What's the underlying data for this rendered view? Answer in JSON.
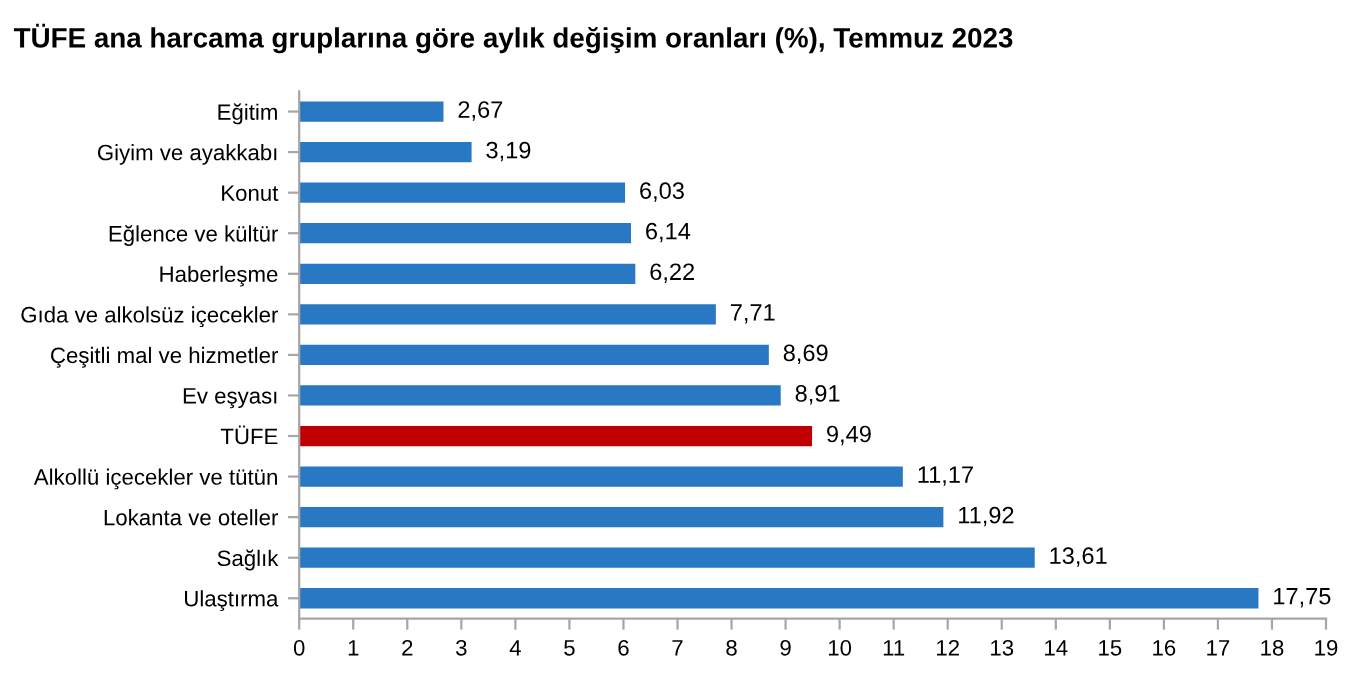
{
  "chart_data": {
    "type": "bar",
    "orientation": "horizontal",
    "title": "TÜFE ana harcama gruplarına göre aylık değişim oranları (%), Temmuz 2023",
    "categories": [
      "Eğitim",
      "Giyim ve ayakkabı",
      "Konut",
      "Eğlence ve kültür",
      "Haberleşme",
      "Gıda ve alkolsüz içecekler",
      "Çeşitli mal ve hizmetler",
      "Ev eşyası",
      "TÜFE",
      "Alkollü içecekler ve tütün",
      "Lokanta ve oteller",
      "Sağlık",
      "Ulaştırma"
    ],
    "values": [
      2.67,
      3.19,
      6.03,
      6.14,
      6.22,
      7.71,
      8.69,
      8.91,
      9.49,
      11.17,
      11.92,
      13.61,
      17.75
    ],
    "value_labels": [
      "2,67",
      "3,19",
      "6,03",
      "6,14",
      "6,22",
      "7,71",
      "8,69",
      "8,91",
      "9,49",
      "11,17",
      "11,92",
      "13,61",
      "17,75"
    ],
    "colors": [
      "#2878c3",
      "#2878c3",
      "#2878c3",
      "#2878c3",
      "#2878c3",
      "#2878c3",
      "#2878c3",
      "#2878c3",
      "#c00000",
      "#2878c3",
      "#2878c3",
      "#2878c3",
      "#2878c3"
    ],
    "xlim": [
      0,
      19
    ],
    "xticks": [
      0,
      1,
      2,
      3,
      4,
      5,
      6,
      7,
      8,
      9,
      10,
      11,
      12,
      13,
      14,
      15,
      16,
      17,
      18,
      19
    ],
    "grid": false,
    "legend": false
  }
}
